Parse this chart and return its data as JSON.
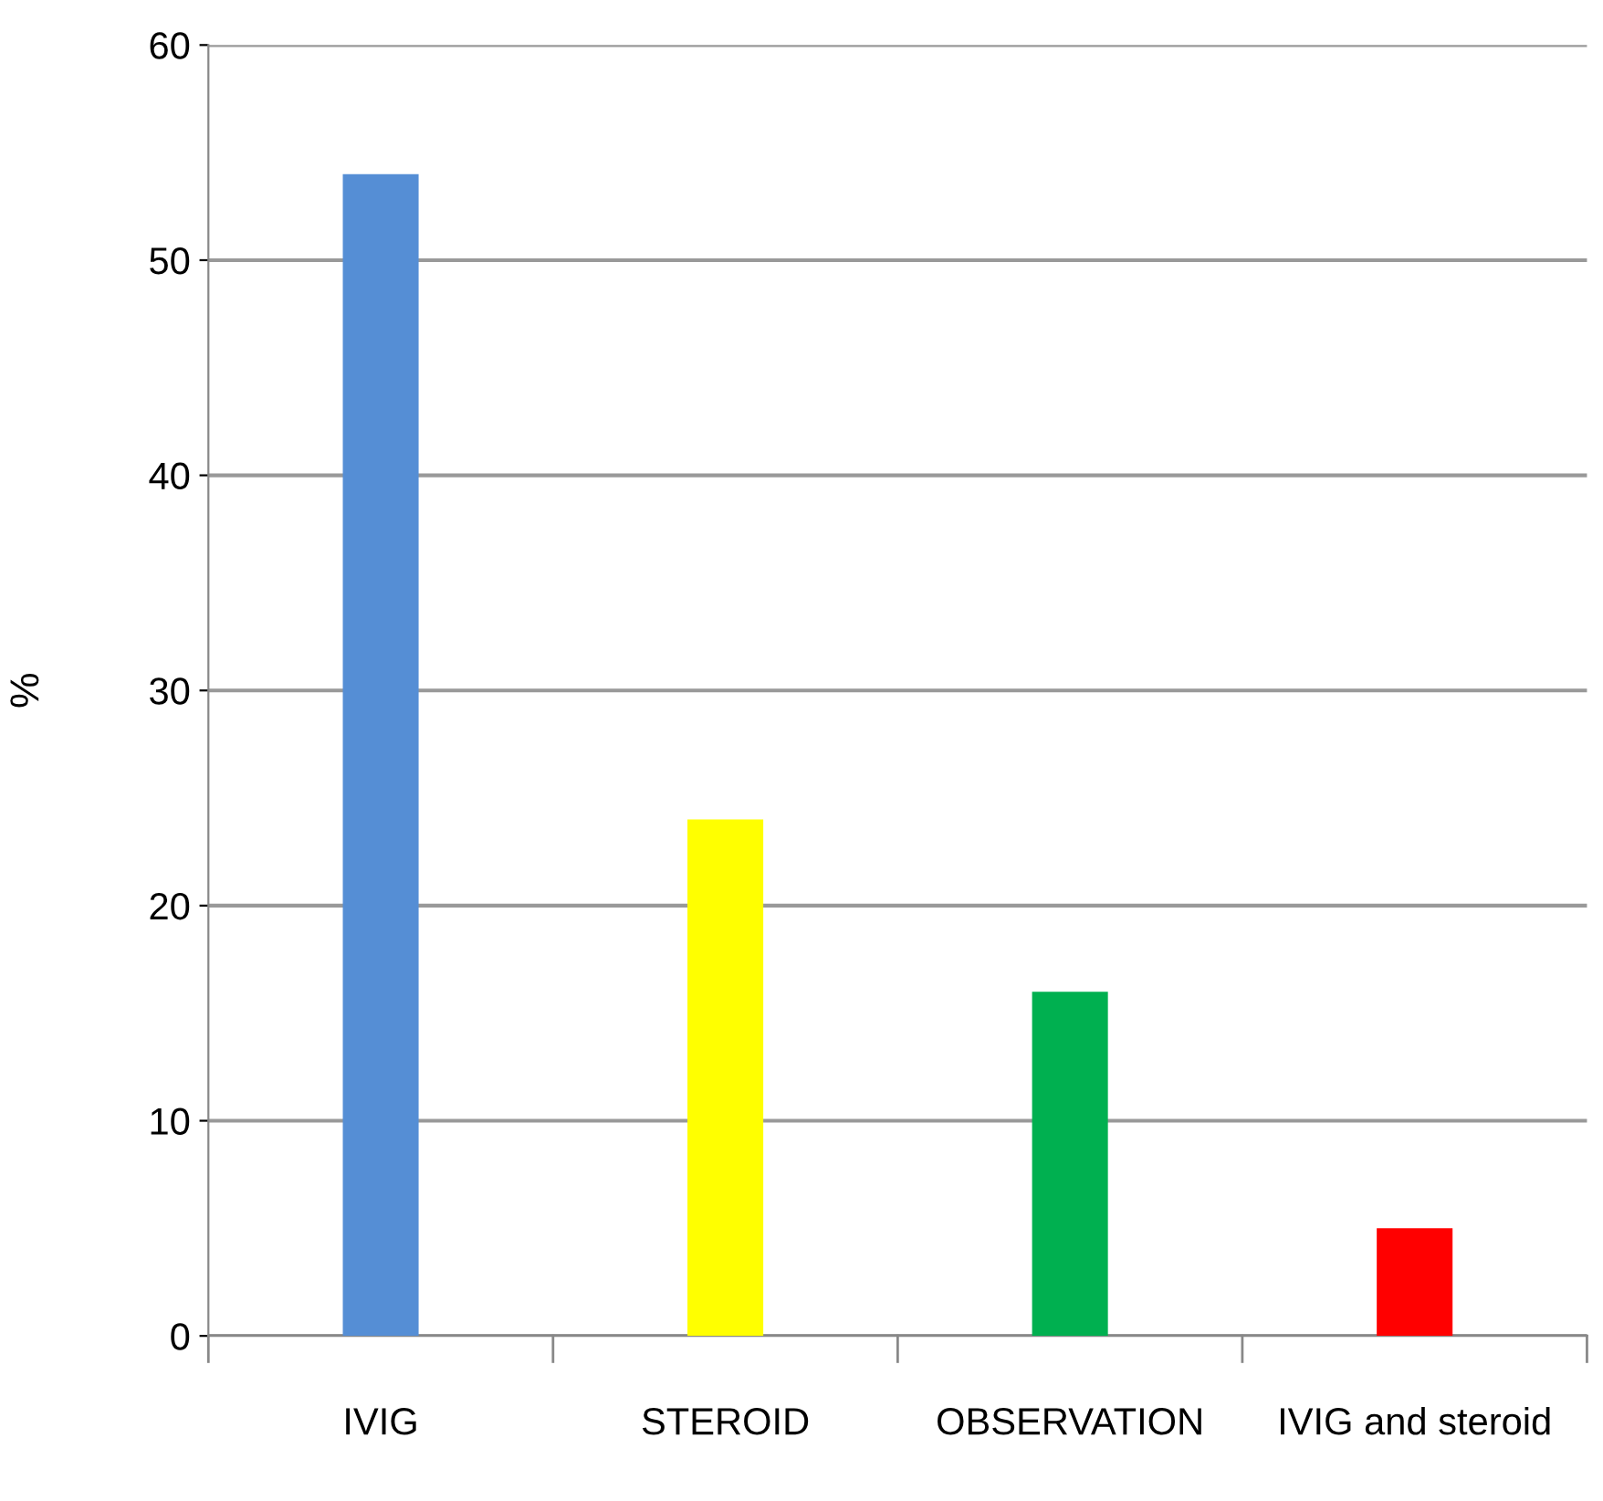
{
  "chart_data": {
    "type": "bar",
    "ylabel": "%",
    "categories": [
      "IVIG",
      "STEROID",
      "OBSERVATION",
      "IVIG and steroid"
    ],
    "values": [
      54,
      24,
      16,
      5
    ],
    "colors": [
      "#558ed5",
      "#ffff00",
      "#00b050",
      "#ff0000"
    ],
    "ylim": [
      0,
      60
    ],
    "yticks": [
      0,
      10,
      20,
      30,
      40,
      50,
      60
    ],
    "grid": "y"
  }
}
